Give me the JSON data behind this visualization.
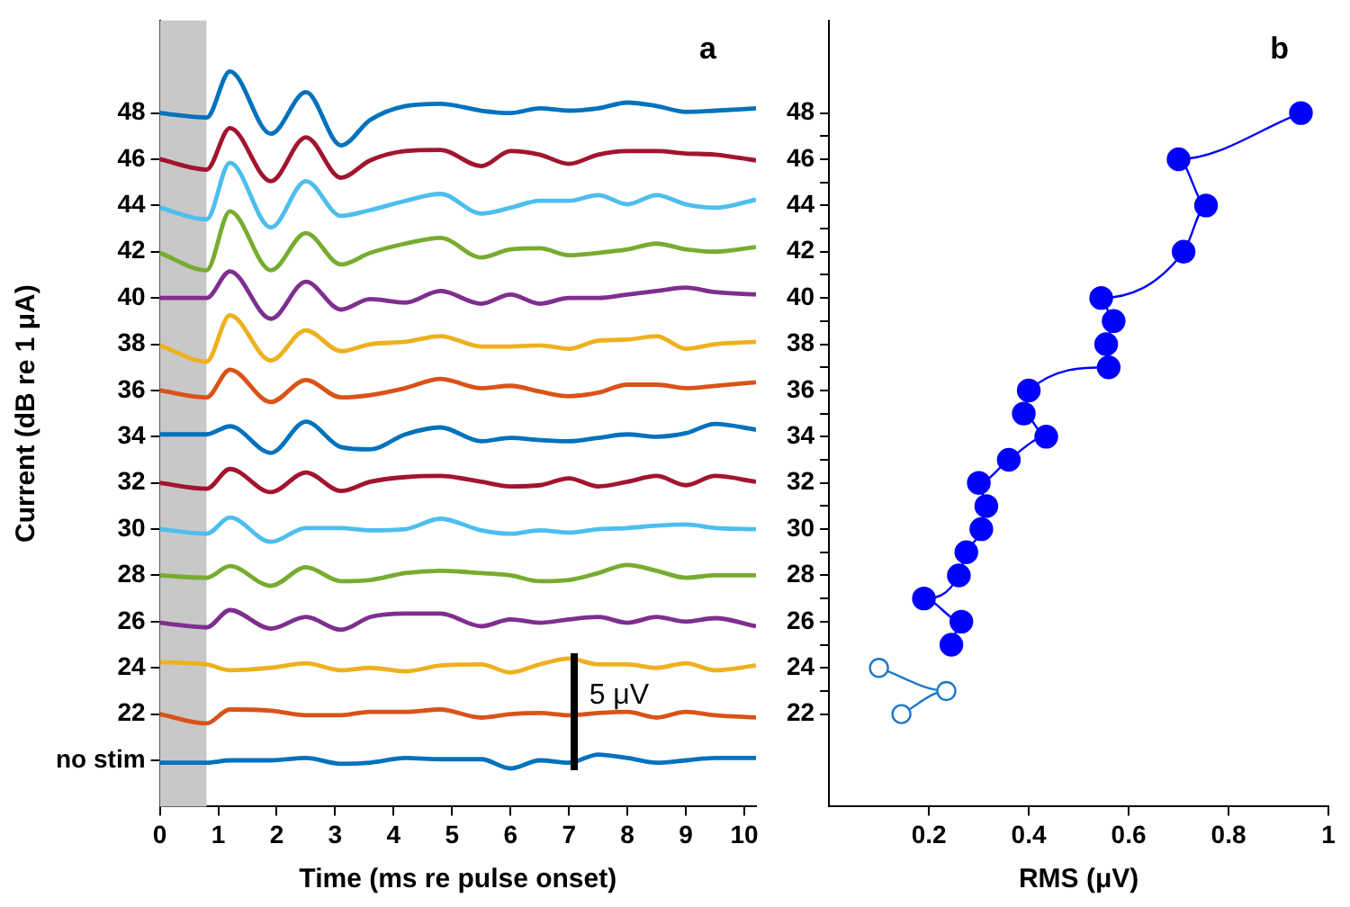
{
  "chart_data": [
    {
      "type": "line",
      "title": "a",
      "xlabel": "Time (ms re pulse onset)",
      "ylabel": "Current (dB re 1 μA)",
      "marker": "none",
      "x": [
        0,
        0.8,
        1.2,
        1.9,
        2.5,
        3.1,
        3.6,
        4.2,
        4.8,
        5.5,
        6,
        6.5,
        7,
        7.5,
        8,
        8.5,
        9,
        9.5,
        10.2
      ],
      "series": [
        {
          "color": "#0072bd",
          "values": [
            48,
            47.8,
            49.8,
            47.1,
            48.9,
            46.6,
            47.7,
            48.3,
            48.4,
            48.1,
            48,
            48.2,
            48.1,
            48.2,
            48.45,
            48.3,
            48.05,
            48.1,
            48.2
          ]
        },
        {
          "color": "#a2142f",
          "values": [
            46,
            45.55,
            47.35,
            45.05,
            46.95,
            45.2,
            45.95,
            46.35,
            46.4,
            45.7,
            46.35,
            46.2,
            45.8,
            46.2,
            46.35,
            46.35,
            46.25,
            46.2,
            45.95
          ]
        },
        {
          "color": "#4dbeee",
          "values": [
            43.9,
            43.4,
            45.85,
            43.05,
            45.05,
            43.55,
            43.8,
            44.2,
            44.5,
            43.65,
            43.9,
            44.2,
            44.2,
            44.45,
            44.05,
            44.45,
            44.05,
            43.9,
            44.25
          ]
        },
        {
          "color": "#77ac30",
          "values": [
            41.95,
            41.2,
            43.75,
            41.2,
            42.8,
            41.45,
            41.95,
            42.35,
            42.6,
            41.75,
            42.1,
            42.15,
            41.85,
            41.95,
            42.1,
            42.35,
            42.1,
            42,
            42.2
          ]
        },
        {
          "color": "#7e2f8e",
          "values": [
            40,
            40,
            41.15,
            39.1,
            40.7,
            39.5,
            39.95,
            39.8,
            40.3,
            39.75,
            40.15,
            39.75,
            40,
            40,
            40.15,
            40.3,
            40.45,
            40.25,
            40.15
          ]
        },
        {
          "color": "#edb120",
          "values": [
            37.95,
            37.25,
            39.25,
            37.3,
            38.6,
            37.7,
            38,
            38.1,
            38.35,
            37.9,
            37.9,
            37.95,
            37.8,
            38.15,
            38.2,
            38.35,
            37.8,
            38,
            38.1
          ]
        },
        {
          "color": "#d95319",
          "values": [
            36,
            35.7,
            36.9,
            35.5,
            36.45,
            35.7,
            35.8,
            36.1,
            36.5,
            36.1,
            36.2,
            35.95,
            35.75,
            35.9,
            36.25,
            36.25,
            36.1,
            36.2,
            36.35
          ]
        },
        {
          "color": "#0072bd",
          "values": [
            34.1,
            34.1,
            34.45,
            33.3,
            34.65,
            33.55,
            33.45,
            34.1,
            34.4,
            33.8,
            33.95,
            33.85,
            33.8,
            33.95,
            34.1,
            34,
            34.15,
            34.55,
            34.3
          ]
        },
        {
          "color": "#a2142f",
          "values": [
            32,
            31.75,
            32.6,
            31.6,
            32.45,
            31.65,
            32.05,
            32.25,
            32.3,
            32.05,
            31.85,
            31.9,
            32.2,
            31.85,
            32.05,
            32.3,
            31.9,
            32.3,
            32.05
          ]
        },
        {
          "color": "#4dbeee",
          "values": [
            30,
            29.8,
            30.5,
            29.45,
            30.05,
            30.05,
            29.95,
            30,
            30.45,
            29.95,
            29.8,
            29.95,
            29.85,
            30,
            30.05,
            30.15,
            30.2,
            30.05,
            30
          ]
        },
        {
          "color": "#77ac30",
          "values": [
            28,
            27.9,
            28.4,
            27.55,
            28.35,
            27.75,
            27.8,
            28.1,
            28.2,
            28.1,
            28,
            27.75,
            27.8,
            28.1,
            28.45,
            28.2,
            27.9,
            28,
            28
          ]
        },
        {
          "color": "#7e2f8e",
          "values": [
            25.95,
            25.75,
            26.5,
            25.7,
            26.2,
            25.65,
            26.2,
            26.35,
            26.35,
            25.8,
            26.1,
            25.95,
            26.1,
            26.2,
            25.95,
            26.2,
            26,
            26.15,
            25.8
          ]
        },
        {
          "color": "#edb120",
          "values": [
            24.25,
            24.15,
            23.9,
            24,
            24.2,
            23.9,
            24,
            23.85,
            24.1,
            24.15,
            23.8,
            24.15,
            24.4,
            24.15,
            24.15,
            24,
            24.2,
            23.9,
            24.1
          ]
        },
        {
          "color": "#d95319",
          "values": [
            22,
            21.6,
            22.2,
            22.15,
            21.95,
            21.95,
            22.1,
            22.1,
            22.2,
            21.85,
            22,
            22.05,
            21.95,
            22.05,
            22.1,
            21.85,
            22.1,
            21.95,
            21.85
          ]
        },
        {
          "color": "#0072bd",
          "values": [
            19.9,
            19.9,
            20,
            20,
            20.1,
            19.85,
            19.9,
            20.1,
            20.05,
            20.05,
            19.65,
            20,
            19.9,
            20.25,
            20.1,
            19.9,
            20,
            20.1,
            20.1
          ]
        }
      ],
      "xlim": [
        0,
        10.2
      ],
      "xticks": [
        0,
        1,
        2,
        3,
        4,
        5,
        6,
        7,
        8,
        9,
        10
      ],
      "ylim": [
        18,
        52
      ],
      "yticks": [
        {
          "value": 20,
          "label": "no stim"
        },
        22,
        24,
        26,
        28,
        30,
        32,
        34,
        36,
        38,
        40,
        42,
        44,
        46,
        48
      ],
      "bands": [
        {
          "axis": "x",
          "from": 0,
          "to": 0.8,
          "color": "#c8c8c8"
        }
      ],
      "annotations": [
        "5 μV"
      ]
    },
    {
      "type": "line",
      "title": "b",
      "xlabel": "RMS (μV)",
      "marker": "circle",
      "series": [
        {
          "color": "#0000ff",
          "x": [
            0.245,
            0.265,
            0.19,
            0.26,
            0.275,
            0.305,
            0.315,
            0.3,
            0.36,
            0.435,
            0.39,
            0.4,
            0.56,
            0.555,
            0.57,
            0.545,
            0.71,
            0.755,
            0.7,
            0.945
          ],
          "values": [
            25,
            26,
            27,
            28,
            29,
            30,
            31,
            32,
            33,
            34,
            35,
            36,
            37,
            38,
            39,
            40,
            42,
            44,
            46,
            48
          ]
        },
        {
          "color": "#1f78c8",
          "x": [
            0.1,
            0.235,
            0.145
          ],
          "values": [
            24,
            23,
            22
          ]
        }
      ],
      "xlim": [
        0,
        1
      ],
      "xticks": [
        0.2,
        0.4,
        0.6,
        0.8,
        1
      ],
      "ylim": [
        18,
        52
      ],
      "yticks": [
        22,
        {
          "value": 23,
          "label": null
        },
        24,
        {
          "value": 25,
          "label": null
        },
        26,
        {
          "value": 27,
          "label": null
        },
        28,
        {
          "value": 29,
          "label": null
        },
        30,
        {
          "value": 31,
          "label": null
        },
        32,
        {
          "value": 33,
          "label": null
        },
        34,
        {
          "value": 35,
          "label": null
        },
        36,
        {
          "value": 37,
          "label": null
        },
        38,
        {
          "value": 39,
          "label": null
        },
        40,
        {
          "value": 41,
          "label": null
        },
        42,
        {
          "value": 43,
          "label": null
        },
        44,
        {
          "value": 45,
          "label": null
        },
        46,
        {
          "value": 47,
          "label": null
        },
        48
      ]
    }
  ]
}
